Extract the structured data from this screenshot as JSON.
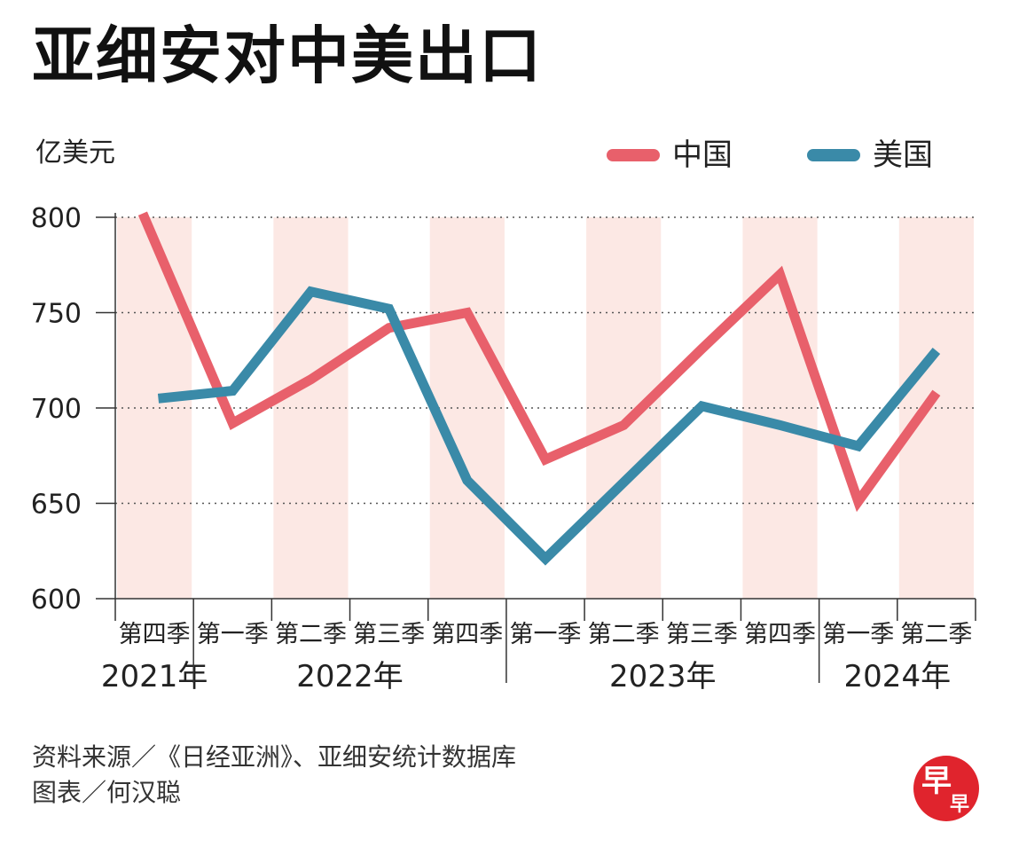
{
  "title": "亚细安对中美出口",
  "unit_label": "亿美元",
  "colors": {
    "china": "#e8606b",
    "usa": "#3a8aa8",
    "band": "#fce8e4"
  },
  "chart_data": {
    "type": "line",
    "title": "亚细安对中美出口",
    "ylabel": "亿美元",
    "ylim": [
      600,
      800
    ],
    "yticks": [
      600,
      650,
      700,
      750,
      800
    ],
    "grid": true,
    "legend_position": "top-right",
    "categories": [
      "第四季",
      "第一季",
      "第二季",
      "第三季",
      "第四季",
      "第一季",
      "第二季",
      "第三季",
      "第四季",
      "第一季",
      "第二季"
    ],
    "year_groups": [
      {
        "label": "2021年",
        "count": 1
      },
      {
        "label": "2022年",
        "count": 4
      },
      {
        "label": "2023年",
        "count": 4
      },
      {
        "label": "2024年",
        "count": 2
      }
    ],
    "series": [
      {
        "name": "中国",
        "values": [
          802,
          692,
          715,
          742,
          750,
          673,
          691,
          731,
          770,
          651,
          708
        ]
      },
      {
        "name": "美国",
        "values": [
          705,
          709,
          761,
          752,
          662,
          621,
          661,
          701,
          691,
          680,
          730
        ]
      }
    ]
  },
  "footer": {
    "source": "资料来源／《日经亚洲》、亚细安统计数据库",
    "credit": "图表／何汉聪"
  },
  "logo": {
    "text": "早早",
    "color": "#e0242d"
  }
}
